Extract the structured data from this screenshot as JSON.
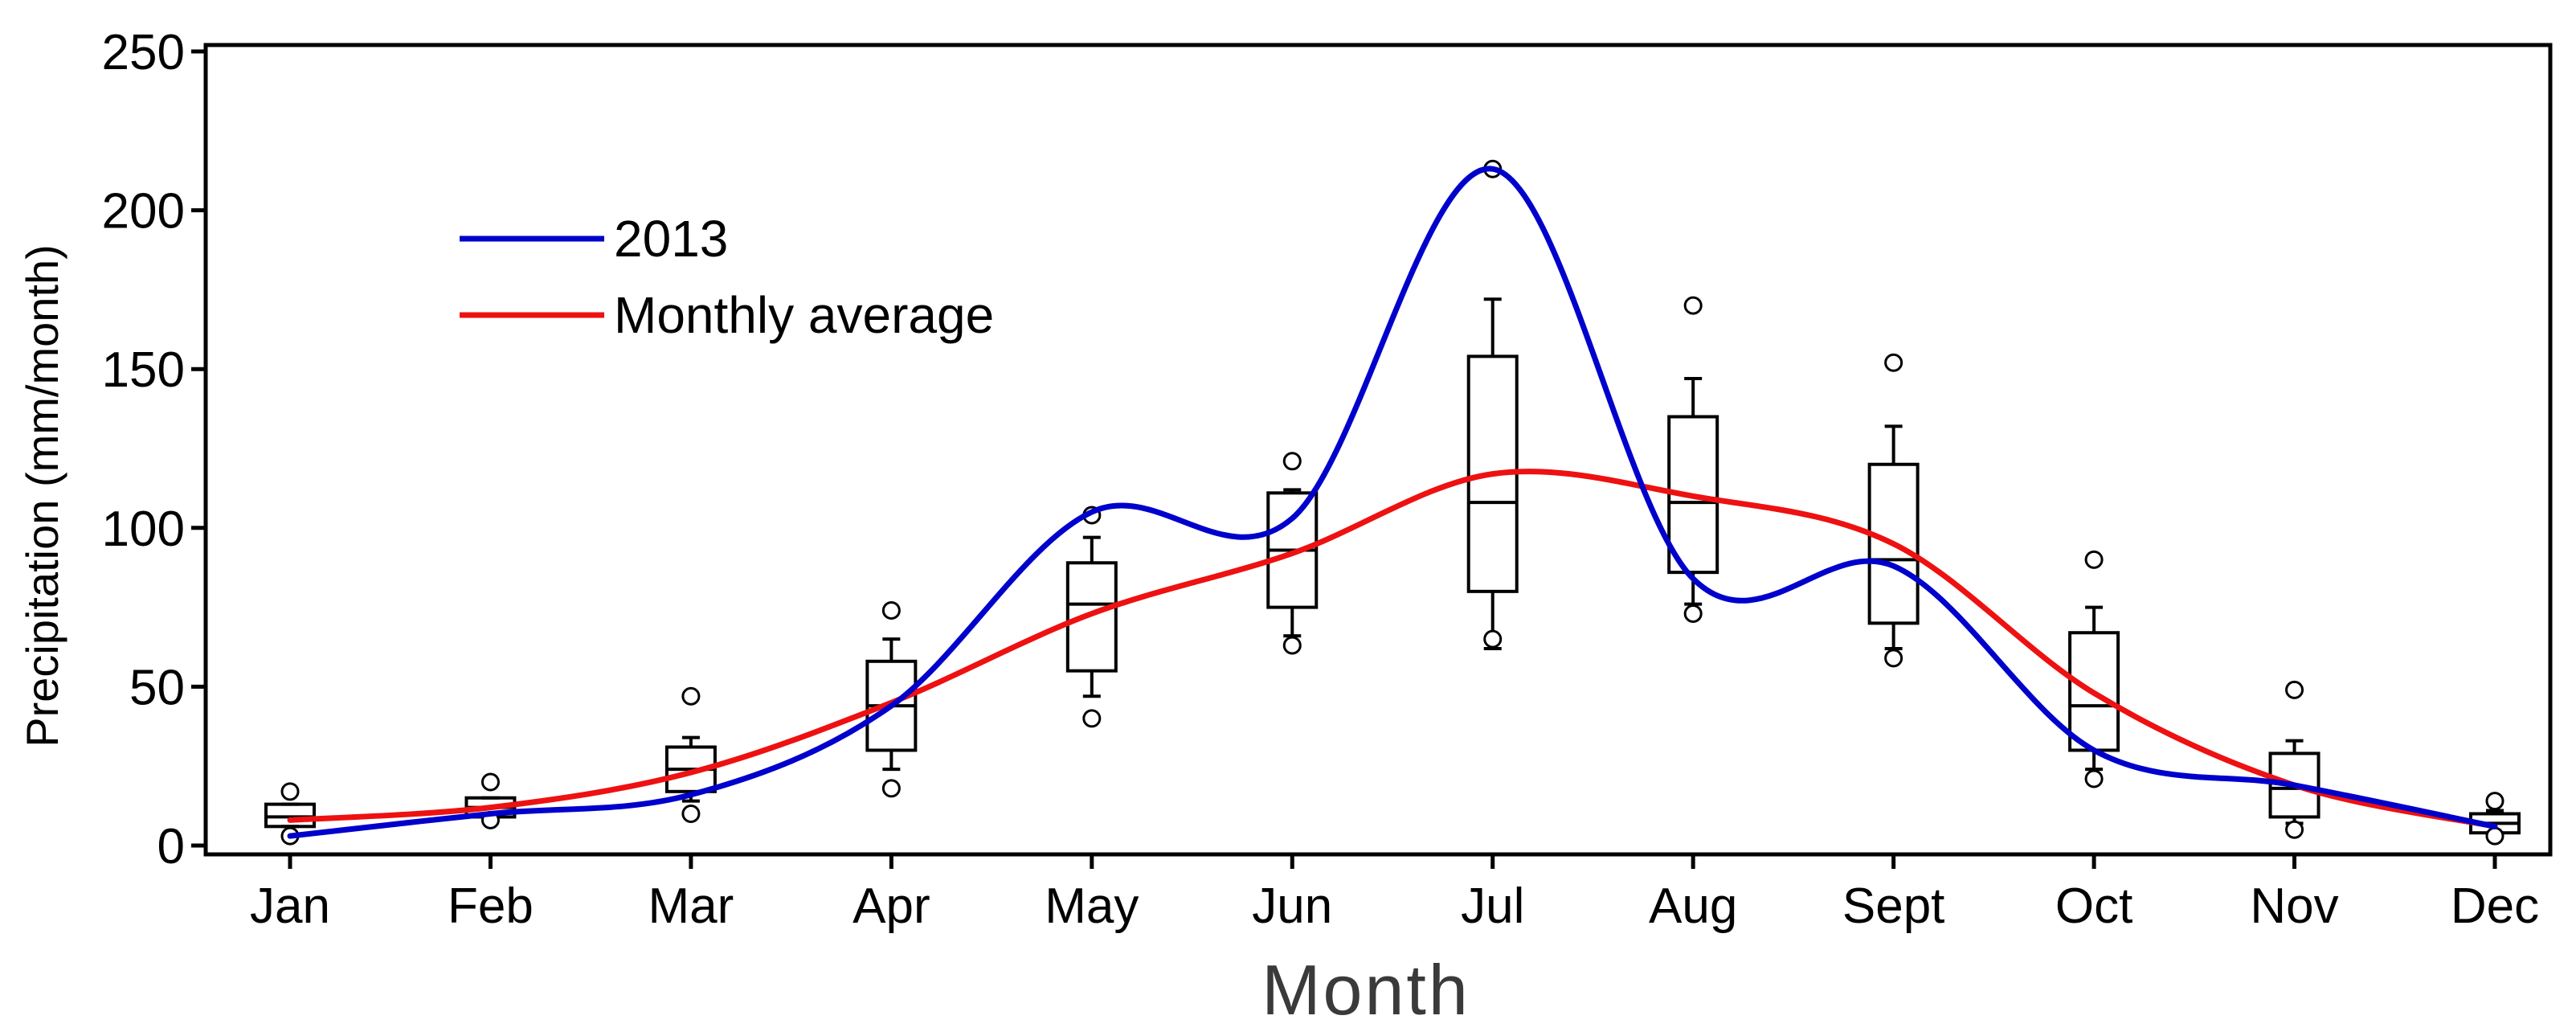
{
  "chart_data": {
    "type": "box+line",
    "title": "",
    "xlabel": "Month",
    "ylabel": "Precipitation (mm/month)",
    "ylim": [
      0,
      250
    ],
    "yticks": [
      0,
      50,
      100,
      150,
      200,
      250
    ],
    "grid": false,
    "legend_position": "top-left",
    "categories": [
      "Jan",
      "Feb",
      "Mar",
      "Apr",
      "May",
      "Jun",
      "Jul",
      "Aug",
      "Sept",
      "Oct",
      "Nov",
      "Dec"
    ],
    "series": [
      {
        "name": "2013",
        "color": "#0000cc",
        "values": [
          3,
          10,
          16,
          44,
          105,
          103,
          213,
          84,
          88,
          30,
          19,
          6
        ]
      },
      {
        "name": "Monthly average",
        "color": "#ee1111",
        "values": [
          8,
          12,
          23,
          45,
          73,
          92,
          117,
          110,
          95,
          48,
          19,
          6
        ]
      }
    ],
    "boxes": [
      {
        "month": "Jan",
        "q1": 6,
        "median": 9,
        "q3": 13,
        "whisker_low": 6,
        "whisker_high": 13,
        "outliers": [
          3,
          17
        ]
      },
      {
        "month": "Feb",
        "q1": 9,
        "median": 12,
        "q3": 15,
        "whisker_low": 9,
        "whisker_high": 15,
        "outliers": [
          8,
          20
        ]
      },
      {
        "month": "Mar",
        "q1": 17,
        "median": 24,
        "q3": 31,
        "whisker_low": 14,
        "whisker_high": 34,
        "outliers": [
          10,
          47
        ]
      },
      {
        "month": "Apr",
        "q1": 30,
        "median": 44,
        "q3": 58,
        "whisker_low": 24,
        "whisker_high": 65,
        "outliers": [
          18,
          74
        ]
      },
      {
        "month": "May",
        "q1": 55,
        "median": 76,
        "q3": 89,
        "whisker_low": 47,
        "whisker_high": 97,
        "outliers": [
          40,
          104
        ]
      },
      {
        "month": "Jun",
        "q1": 75,
        "median": 93,
        "q3": 111,
        "whisker_low": 66,
        "whisker_high": 112,
        "outliers": [
          63,
          121
        ]
      },
      {
        "month": "Jul",
        "q1": 80,
        "median": 108,
        "q3": 154,
        "whisker_low": 62,
        "whisker_high": 172,
        "outliers": [
          65,
          213
        ]
      },
      {
        "month": "Aug",
        "q1": 86,
        "median": 108,
        "q3": 135,
        "whisker_low": 76,
        "whisker_high": 147,
        "outliers": [
          73,
          170
        ]
      },
      {
        "month": "Sept",
        "q1": 70,
        "median": 90,
        "q3": 120,
        "whisker_low": 62,
        "whisker_high": 132,
        "outliers": [
          59,
          152
        ]
      },
      {
        "month": "Oct",
        "q1": 30,
        "median": 44,
        "q3": 67,
        "whisker_low": 24,
        "whisker_high": 75,
        "outliers": [
          21,
          90
        ]
      },
      {
        "month": "Nov",
        "q1": 9,
        "median": 18,
        "q3": 29,
        "whisker_low": 7,
        "whisker_high": 33,
        "outliers": [
          5,
          49
        ]
      },
      {
        "month": "Dec",
        "q1": 4,
        "median": 7,
        "q3": 10,
        "whisker_low": 4,
        "whisker_high": 11,
        "outliers": [
          3,
          14
        ]
      }
    ]
  }
}
